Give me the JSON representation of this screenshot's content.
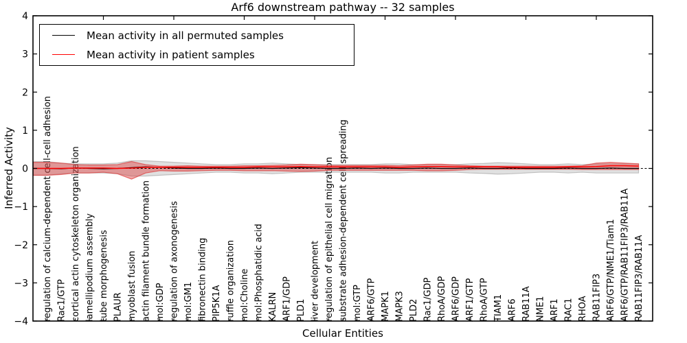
{
  "figure": {
    "title": "Arf6 downstream pathway -- 32 samples",
    "xlabel": "Cellular Entities",
    "ylabel": "Inferred Activity"
  },
  "legend": {
    "items": [
      {
        "label": "Mean activity in all permuted samples",
        "color": "#000000"
      },
      {
        "label": "Mean activity in patient samples",
        "color": "#ff0000"
      }
    ]
  },
  "chart_data": {
    "type": "line",
    "title": "Arf6 downstream pathway -- 32 samples",
    "xlabel": "Cellular Entities",
    "ylabel": "Inferred Activity",
    "ylim": [
      -4,
      4
    ],
    "yticks": [
      -4,
      -3,
      -2,
      -1,
      0,
      1,
      2,
      3,
      4
    ],
    "xticks_top": [
      5,
      10,
      15,
      20,
      25,
      30,
      35,
      40
    ],
    "grid": false,
    "legend_position": "upper left",
    "zero_line": {
      "style": "dashed",
      "color": "#000000",
      "y": 0
    },
    "categories": [
      "regulation of calcium-dependent cell-cell adhesion",
      "Rac1/GTP",
      "cortical actin cytoskeleton organization",
      "lamellipodium assembly",
      "tube morphogenesis",
      "PLAUR",
      "myoblast fusion",
      "actin filament bundle formation",
      "mol:GDP",
      "regulation of axonogenesis",
      "mol:GM1",
      "fibronectin binding",
      "PIP5K1A",
      "ruffle organization",
      "mol:Choline",
      "mol:Phosphatidic acid",
      "KALRN",
      "ARF1/GDP",
      "PLD1",
      "liver development",
      "regulation of epithelial cell migration",
      "substrate adhesion-dependent cell spreading",
      "mol:GTP",
      "ARF6/GTP",
      "MAPK1",
      "MAPK3",
      "PLD2",
      "Rac1/GDP",
      "RhoA/GDP",
      "ARF6/GDP",
      "ARF1/GTP",
      "RhoA/GTP",
      "TIAM1",
      "ARF6",
      "RAB11A",
      "NME1",
      "ARF1",
      "RAC1",
      "RHOA",
      "RAB11FIP3",
      "ARF6/GTP/NME1/Tiam1",
      "ARF6/GTP/RAB11FIP3/RAB11A",
      "RAB11FIP3/RAB11A"
    ],
    "series": [
      {
        "name": "Mean activity in all permuted samples",
        "color": "#000000",
        "values": [
          0.0,
          -0.01,
          0.01,
          0.0,
          -0.01,
          0.0,
          0.02,
          0.04,
          0.03,
          0.01,
          0.0,
          0.0,
          0.01,
          0.0,
          0.0,
          0.01,
          0.0,
          0.01,
          0.02,
          0.01,
          0.0,
          0.0,
          0.01,
          0.0,
          0.01,
          0.0,
          0.0,
          0.01,
          0.0,
          0.0,
          0.01,
          0.0,
          0.0,
          0.01,
          0.0,
          0.0,
          0.0,
          0.01,
          0.0,
          0.0,
          0.01,
          0.0,
          0.0
        ]
      },
      {
        "name": "Mean activity in patient samples",
        "color": "#ff0000",
        "values": [
          0.0,
          0.0,
          0.01,
          0.01,
          0.01,
          0.0,
          0.01,
          0.03,
          0.03,
          0.03,
          0.03,
          0.03,
          0.03,
          0.03,
          0.03,
          0.04,
          0.04,
          0.04,
          0.05,
          0.04,
          0.04,
          0.04,
          0.04,
          0.04,
          0.04,
          0.03,
          0.04,
          0.05,
          0.05,
          0.04,
          0.04,
          0.04,
          0.04,
          0.03,
          0.03,
          0.03,
          0.03,
          0.04,
          0.04,
          0.05,
          0.07,
          0.07,
          0.06
        ]
      }
    ],
    "bands": [
      {
        "name": "permuted-spread",
        "color": "#999999",
        "fill_opacity": 0.3,
        "upper": [
          0.18,
          0.14,
          0.12,
          0.12,
          0.12,
          0.14,
          0.2,
          0.2,
          0.18,
          0.16,
          0.14,
          0.12,
          0.1,
          0.1,
          0.12,
          0.12,
          0.14,
          0.12,
          0.1,
          0.1,
          0.1,
          0.1,
          0.1,
          0.1,
          0.12,
          0.12,
          0.1,
          0.1,
          0.1,
          0.1,
          0.12,
          0.13,
          0.15,
          0.14,
          0.12,
          0.1,
          0.1,
          0.12,
          0.1,
          0.12,
          0.12,
          0.12,
          0.12
        ],
        "lower": [
          -0.18,
          -0.14,
          -0.12,
          -0.12,
          -0.12,
          -0.14,
          -0.2,
          -0.2,
          -0.18,
          -0.16,
          -0.14,
          -0.12,
          -0.1,
          -0.1,
          -0.12,
          -0.12,
          -0.14,
          -0.12,
          -0.1,
          -0.1,
          -0.1,
          -0.1,
          -0.1,
          -0.1,
          -0.12,
          -0.12,
          -0.1,
          -0.1,
          -0.1,
          -0.1,
          -0.12,
          -0.13,
          -0.15,
          -0.14,
          -0.12,
          -0.1,
          -0.1,
          -0.12,
          -0.1,
          -0.12,
          -0.12,
          -0.12,
          -0.12
        ]
      },
      {
        "name": "patient-spread",
        "color": "#dd3333",
        "fill_opacity": 0.42,
        "upper": [
          0.16,
          0.14,
          0.1,
          0.09,
          0.09,
          0.1,
          0.18,
          0.1,
          0.06,
          0.06,
          0.07,
          0.06,
          0.06,
          0.06,
          0.07,
          0.07,
          0.08,
          0.09,
          0.11,
          0.1,
          0.08,
          0.08,
          0.08,
          0.08,
          0.08,
          0.07,
          0.09,
          0.11,
          0.11,
          0.09,
          0.07,
          0.06,
          0.06,
          0.06,
          0.06,
          0.06,
          0.06,
          0.06,
          0.07,
          0.14,
          0.16,
          0.14,
          0.12
        ],
        "lower": [
          -0.18,
          -0.16,
          -0.12,
          -0.12,
          -0.1,
          -0.14,
          -0.28,
          -0.12,
          -0.06,
          -0.07,
          -0.07,
          -0.06,
          -0.05,
          -0.05,
          -0.06,
          -0.06,
          -0.06,
          -0.07,
          -0.08,
          -0.07,
          -0.05,
          -0.05,
          -0.05,
          -0.05,
          -0.05,
          -0.05,
          -0.05,
          -0.06,
          -0.06,
          -0.05,
          -0.03,
          -0.02,
          -0.02,
          -0.02,
          -0.02,
          -0.02,
          -0.02,
          -0.02,
          -0.03,
          -0.03,
          -0.03,
          -0.03,
          -0.03
        ]
      }
    ]
  }
}
